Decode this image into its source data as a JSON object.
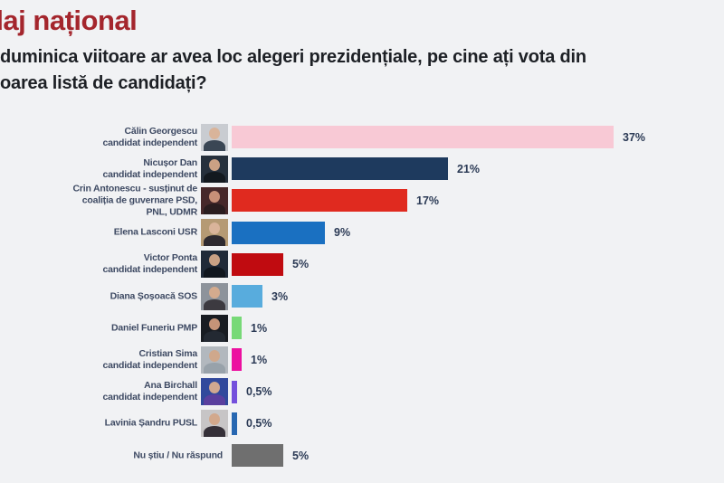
{
  "page": {
    "background": "#f1f2f4"
  },
  "colors": {
    "title": "#a4262d",
    "question": "#1d2025",
    "candidate_label": "#3e4a63",
    "value_label": "#2b3a55"
  },
  "header": {
    "title_visible": "daj național",
    "question_line1": "duminica viitoare ar avea loc alegeri prezidențiale, pe cine ați vota din",
    "question_line2": "oarea listă de candidați?"
  },
  "chart_data": {
    "type": "bar",
    "orientation": "horizontal",
    "unit": "%",
    "xlim": [
      0,
      40
    ],
    "grid": false,
    "legend": false,
    "value_labels_at_bar_end": true,
    "bars": [
      {
        "label_lines": [
          "Călin Georgescu",
          "candidat independent"
        ],
        "value": 37,
        "display": "37%",
        "color": "#f8c9d5",
        "photo": {
          "bg": "#c9ccd1",
          "suit": "#3a4654",
          "skin": "#d9b49a"
        }
      },
      {
        "label_lines": [
          "Nicușor Dan",
          "candidat independent"
        ],
        "value": 21,
        "display": "21%",
        "color": "#1e3a5e",
        "photo": {
          "bg": "#26303c",
          "suit": "#13191f",
          "skin": "#caa184"
        }
      },
      {
        "label_lines": [
          "Crin Antonescu - susținut de",
          "coaliția de guvernare PSD,",
          "PNL, UDMR"
        ],
        "value": 17,
        "display": "17%",
        "color": "#e02a1f",
        "photo": {
          "bg": "#46282a",
          "suit": "#2a1d1f",
          "skin": "#c89078"
        }
      },
      {
        "label_lines": [
          "Elena Lasconi USR"
        ],
        "value": 9,
        "display": "9%",
        "color": "#1a70c1",
        "photo": {
          "bg": "#b59a74",
          "suit": "#2e2a30",
          "skin": "#d9b49a"
        }
      },
      {
        "label_lines": [
          "Victor Ponta",
          "candidat independent"
        ],
        "value": 5,
        "display": "5%",
        "color": "#c00b10",
        "photo": {
          "bg": "#202a38",
          "suit": "#10161e",
          "skin": "#c9a184"
        }
      },
      {
        "label_lines": [
          "Diana Șoșoacă SOS"
        ],
        "value": 3,
        "display": "3%",
        "color": "#58acdd",
        "photo": {
          "bg": "#8d939b",
          "suit": "#3c3a40",
          "skin": "#d4ab8e"
        }
      },
      {
        "label_lines": [
          "Daniel Funeriu PMP"
        ],
        "value": 1,
        "display": "1%",
        "color": "#77d977",
        "photo": {
          "bg": "#181c22",
          "suit": "#232932",
          "skin": "#c59478"
        }
      },
      {
        "label_lines": [
          "Cristian Sima",
          "candidat independent"
        ],
        "value": 1,
        "display": "1%",
        "color": "#ec10a0",
        "photo": {
          "bg": "#b2b8be",
          "suit": "#98a2aa",
          "skin": "#cfa88c"
        }
      },
      {
        "label_lines": [
          "Ana Birchall",
          "candidat independent"
        ],
        "value": 0.5,
        "display": "0,5%",
        "color": "#7450dc",
        "photo": {
          "bg": "#31499c",
          "suit": "#5a3f9e",
          "skin": "#d0a890"
        }
      },
      {
        "label_lines": [
          "Lavinia Șandru PUSL"
        ],
        "value": 0.5,
        "display": "0,5%",
        "color": "#2767b1",
        "photo": {
          "bg": "#c7c5c6",
          "suit": "#353038",
          "skin": "#d2a88c"
        }
      },
      {
        "label_lines": [
          "Nu știu / Nu răspund"
        ],
        "value": 5,
        "display": "5%",
        "color": "#6f6f6f",
        "photo": null
      }
    ]
  }
}
